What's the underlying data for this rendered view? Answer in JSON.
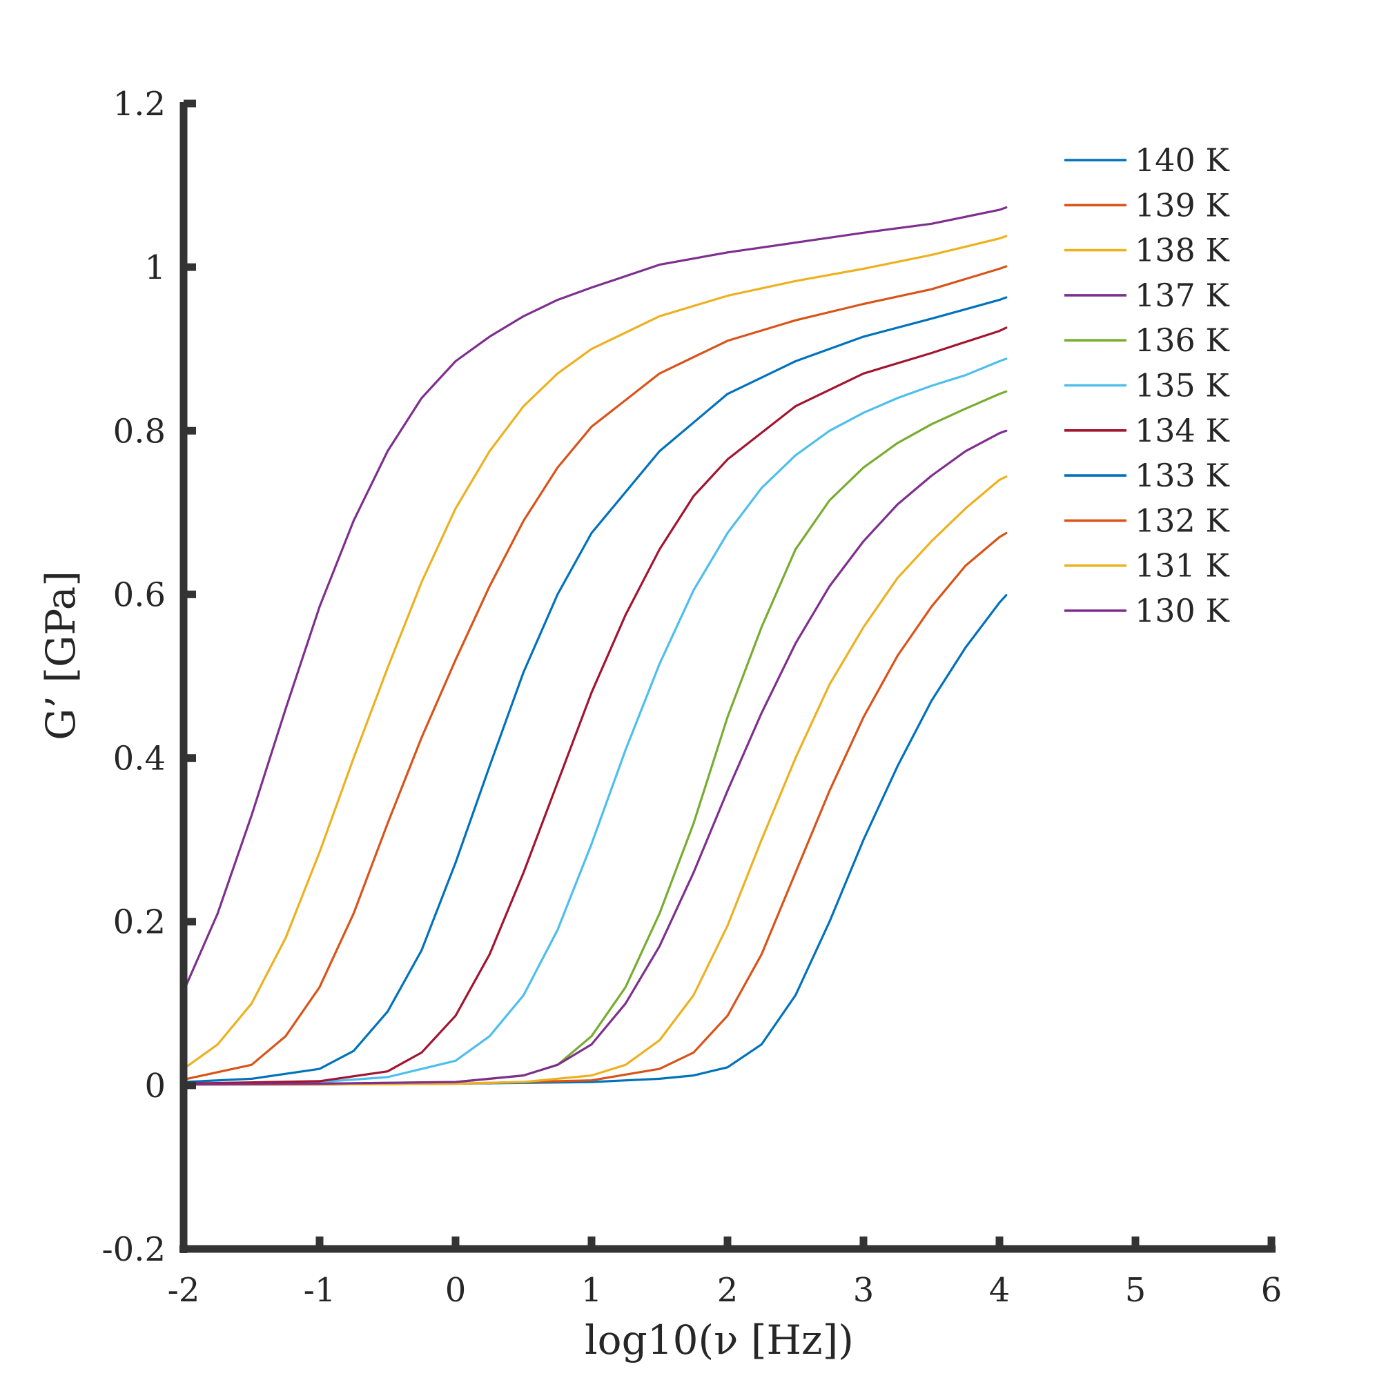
{
  "chart_data": {
    "type": "line",
    "xlabel": "log10(ν [Hz])",
    "ylabel": "G’ [GPa]",
    "xlim": [
      -2,
      6
    ],
    "ylim": [
      -0.2,
      1.2
    ],
    "xticks": [
      -2,
      -1,
      0,
      1,
      2,
      3,
      4,
      5,
      6
    ],
    "yticks": [
      -0.2,
      0,
      0.2,
      0.4,
      0.6,
      0.8,
      1,
      1.2
    ],
    "xtick_labels": [
      "-2",
      "-1",
      "0",
      "1",
      "2",
      "3",
      "4",
      "5",
      "6"
    ],
    "ytick_labels": [
      "-0.2",
      "0",
      "0.2",
      "0.4",
      "0.6",
      "0.8",
      "1",
      "1.2"
    ],
    "legend_position": "top-right",
    "grid": false,
    "colors": {
      "axis": "#333333",
      "text": "#262626"
    },
    "series": [
      {
        "name": "140 K",
        "color": "#0072BD",
        "x": [
          -2,
          -1.5,
          -1,
          -0.75,
          -0.5,
          -0.25,
          0,
          0.25,
          0.5,
          0.75,
          1,
          1.5,
          2,
          2.5,
          3,
          3.5,
          4,
          4.05
        ],
        "y": [
          0.004,
          0.008,
          0.02,
          0.042,
          0.09,
          0.165,
          0.272,
          0.39,
          0.505,
          0.6,
          0.675,
          0.775,
          0.845,
          0.885,
          0.915,
          0.937,
          0.96,
          0.963
        ]
      },
      {
        "name": "139 K",
        "color": "#D95319",
        "x": [
          -2,
          -1.5,
          -1.25,
          -1,
          -0.75,
          -0.5,
          -0.25,
          0,
          0.25,
          0.5,
          0.75,
          1,
          1.5,
          2,
          2.5,
          3,
          3.5,
          4,
          4.05
        ],
        "y": [
          0.007,
          0.025,
          0.06,
          0.12,
          0.21,
          0.32,
          0.425,
          0.52,
          0.61,
          0.69,
          0.755,
          0.805,
          0.87,
          0.91,
          0.935,
          0.955,
          0.973,
          0.998,
          1.001
        ]
      },
      {
        "name": "138 K",
        "color": "#EDB120",
        "x": [
          -2,
          -1.75,
          -1.5,
          -1.25,
          -1,
          -0.75,
          -0.5,
          -0.25,
          0,
          0.25,
          0.5,
          0.75,
          1,
          1.5,
          2,
          2.5,
          3,
          3.5,
          4,
          4.05
        ],
        "y": [
          0.02,
          0.05,
          0.1,
          0.18,
          0.285,
          0.4,
          0.51,
          0.615,
          0.705,
          0.775,
          0.83,
          0.87,
          0.9,
          0.94,
          0.965,
          0.983,
          0.998,
          1.015,
          1.035,
          1.038
        ]
      },
      {
        "name": "137 K",
        "color": "#7E2F8E",
        "x": [
          -2,
          -1.75,
          -1.5,
          -1.25,
          -1,
          -0.75,
          -0.5,
          -0.25,
          0,
          0.25,
          0.5,
          0.75,
          1,
          1.5,
          2,
          2.5,
          3,
          3.5,
          4,
          4.05
        ],
        "y": [
          0.115,
          0.21,
          0.33,
          0.46,
          0.585,
          0.69,
          0.775,
          0.84,
          0.885,
          0.915,
          0.94,
          0.96,
          0.975,
          1.003,
          1.018,
          1.03,
          1.042,
          1.053,
          1.07,
          1.073
        ]
      },
      {
        "name": "136 K",
        "color": "#77AC30",
        "x": [
          -2,
          -1,
          0,
          0.5,
          0.75,
          1,
          1.25,
          1.5,
          1.75,
          2,
          2.25,
          2.5,
          2.75,
          3,
          3.25,
          3.5,
          3.75,
          4,
          4.05
        ],
        "y": [
          0.001,
          0.002,
          0.004,
          0.012,
          0.025,
          0.06,
          0.12,
          0.21,
          0.32,
          0.45,
          0.56,
          0.655,
          0.715,
          0.755,
          0.785,
          0.808,
          0.827,
          0.845,
          0.848
        ]
      },
      {
        "name": "135 K",
        "color": "#4DBEEE",
        "x": [
          -2,
          -1,
          -0.5,
          0,
          0.25,
          0.5,
          0.75,
          1,
          1.25,
          1.5,
          1.75,
          2,
          2.25,
          2.5,
          2.75,
          3,
          3.25,
          3.5,
          3.75,
          4,
          4.05
        ],
        "y": [
          0.001,
          0.004,
          0.01,
          0.03,
          0.06,
          0.11,
          0.19,
          0.295,
          0.41,
          0.515,
          0.605,
          0.675,
          0.73,
          0.77,
          0.8,
          0.822,
          0.84,
          0.855,
          0.868,
          0.885,
          0.888
        ]
      },
      {
        "name": "134 K",
        "color": "#A2142F",
        "x": [
          -2,
          -1,
          -0.5,
          -0.25,
          0,
          0.25,
          0.5,
          0.75,
          1,
          1.25,
          1.5,
          1.75,
          2,
          2.5,
          3,
          3.5,
          4,
          4.05
        ],
        "y": [
          0.002,
          0.005,
          0.017,
          0.04,
          0.085,
          0.16,
          0.26,
          0.37,
          0.48,
          0.575,
          0.655,
          0.72,
          0.765,
          0.83,
          0.87,
          0.895,
          0.922,
          0.926
        ]
      },
      {
        "name": "133 K",
        "color": "#0072BD",
        "x": [
          -2,
          -1,
          0,
          1,
          1.5,
          1.75,
          2,
          2.25,
          2.5,
          2.75,
          3,
          3.25,
          3.5,
          3.75,
          4,
          4.05
        ],
        "y": [
          0.001,
          0.001,
          0.002,
          0.004,
          0.008,
          0.012,
          0.022,
          0.05,
          0.11,
          0.2,
          0.3,
          0.39,
          0.47,
          0.535,
          0.59,
          0.599
        ]
      },
      {
        "name": "132 K",
        "color": "#D95319",
        "x": [
          -2,
          -1,
          0,
          1,
          1.5,
          1.75,
          2,
          2.25,
          2.5,
          2.75,
          3,
          3.25,
          3.5,
          3.75,
          4,
          4.05
        ],
        "y": [
          0.001,
          0.001,
          0.002,
          0.006,
          0.02,
          0.04,
          0.085,
          0.16,
          0.26,
          0.36,
          0.45,
          0.525,
          0.585,
          0.635,
          0.67,
          0.675
        ]
      },
      {
        "name": "131 K",
        "color": "#EDB120",
        "x": [
          -2,
          -1,
          0,
          0.5,
          1,
          1.25,
          1.5,
          1.75,
          2,
          2.25,
          2.5,
          2.75,
          3,
          3.25,
          3.5,
          3.75,
          4,
          4.05
        ],
        "y": [
          0.001,
          0.001,
          0.002,
          0.004,
          0.012,
          0.025,
          0.055,
          0.11,
          0.195,
          0.3,
          0.4,
          0.49,
          0.56,
          0.62,
          0.665,
          0.705,
          0.74,
          0.744
        ]
      },
      {
        "name": "130 K",
        "color": "#7E2F8E",
        "x": [
          -2,
          -1,
          0,
          0.5,
          0.75,
          1,
          1.25,
          1.5,
          1.75,
          2,
          2.25,
          2.5,
          2.75,
          3,
          3.25,
          3.5,
          3.75,
          4,
          4.05
        ],
        "y": [
          0.001,
          0.002,
          0.004,
          0.012,
          0.025,
          0.05,
          0.1,
          0.17,
          0.26,
          0.36,
          0.455,
          0.54,
          0.61,
          0.665,
          0.71,
          0.745,
          0.775,
          0.797,
          0.8
        ]
      }
    ]
  }
}
